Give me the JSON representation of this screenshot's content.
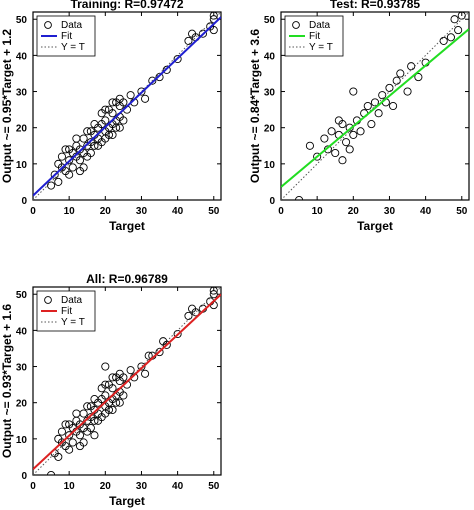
{
  "chart_data": [
    {
      "type": "scatter",
      "title": "Training: R=0.97472",
      "xlabel": "Target",
      "ylabel": "Output ~= 0.95*Target + 1.2",
      "xlim": [
        0,
        52
      ],
      "ylim": [
        0,
        52
      ],
      "xticks": [
        "0",
        "10",
        "20",
        "30",
        "40",
        "50"
      ],
      "yticks": [
        "0",
        "10",
        "20",
        "30",
        "40",
        "50"
      ],
      "grid": false,
      "legend_position": "top-left",
      "legend": [
        "Data",
        "Fit",
        "Y = T"
      ],
      "fit": {
        "slope": 0.95,
        "intercept": 1.2,
        "color": "#1f1fd0"
      },
      "series": [
        {
          "name": "Data",
          "values": [
            [
              5,
              4
            ],
            [
              6,
              7
            ],
            [
              7,
              5
            ],
            [
              8,
              9
            ],
            [
              8,
              12
            ],
            [
              9,
              8
            ],
            [
              10,
              11
            ],
            [
              10,
              14
            ],
            [
              11,
              9
            ],
            [
              11,
              13
            ],
            [
              12,
              12
            ],
            [
              12,
              15
            ],
            [
              13,
              11
            ],
            [
              13,
              14
            ],
            [
              14,
              13
            ],
            [
              14,
              17
            ],
            [
              15,
              15
            ],
            [
              15,
              12
            ],
            [
              16,
              16
            ],
            [
              16,
              19
            ],
            [
              17,
              15
            ],
            [
              17,
              18
            ],
            [
              18,
              17
            ],
            [
              18,
              20
            ],
            [
              19,
              16
            ],
            [
              19,
              21
            ],
            [
              20,
              19
            ],
            [
              20,
              22
            ],
            [
              21,
              20
            ],
            [
              21,
              18
            ],
            [
              22,
              21
            ],
            [
              22,
              24
            ],
            [
              23,
              22
            ],
            [
              23,
              20
            ],
            [
              24,
              23
            ],
            [
              24,
              26
            ],
            [
              25,
              22
            ],
            [
              25,
              27
            ],
            [
              14,
              9
            ],
            [
              16,
              13
            ],
            [
              18,
              15
            ],
            [
              20,
              17
            ],
            [
              20,
              25
            ],
            [
              22,
              27
            ],
            [
              19,
              24
            ],
            [
              17,
              21
            ],
            [
              24,
              20
            ],
            [
              15,
              19
            ],
            [
              21,
              25
            ],
            [
              23,
              27
            ],
            [
              26,
              25
            ],
            [
              27,
              29
            ],
            [
              28,
              27
            ],
            [
              30,
              30
            ],
            [
              31,
              28
            ],
            [
              33,
              33
            ],
            [
              35,
              34
            ],
            [
              37,
              36
            ],
            [
              40,
              39
            ],
            [
              43,
              44
            ],
            [
              45,
              45
            ],
            [
              47,
              46
            ],
            [
              49,
              48
            ],
            [
              50,
              50
            ],
            [
              50,
              51
            ],
            [
              50,
              47
            ],
            [
              44,
              46
            ],
            [
              9,
              14
            ],
            [
              10,
              7
            ],
            [
              12,
              17
            ],
            [
              13,
              8
            ],
            [
              7,
              10
            ],
            [
              24,
              28
            ],
            [
              22,
              18
            ]
          ]
        }
      ]
    },
    {
      "type": "scatter",
      "title": "Test: R=0.93785",
      "xlabel": "Target",
      "ylabel": "Output ~= 0.84*Target + 3.6",
      "xlim": [
        0,
        52
      ],
      "ylim": [
        0,
        52
      ],
      "xticks": [
        "0",
        "10",
        "20",
        "30",
        "40",
        "50"
      ],
      "yticks": [
        "0",
        "10",
        "20",
        "30",
        "40",
        "50"
      ],
      "grid": false,
      "legend_position": "top-left",
      "legend": [
        "Data",
        "Fit",
        "Y = T"
      ],
      "fit": {
        "slope": 0.84,
        "intercept": 3.6,
        "color": "#22dd22"
      },
      "series": [
        {
          "name": "Data",
          "values": [
            [
              5,
              0
            ],
            [
              8,
              15
            ],
            [
              10,
              12
            ],
            [
              12,
              17
            ],
            [
              13,
              14
            ],
            [
              14,
              19
            ],
            [
              15,
              13
            ],
            [
              16,
              18
            ],
            [
              17,
              11
            ],
            [
              17,
              21
            ],
            [
              18,
              16
            ],
            [
              19,
              20
            ],
            [
              20,
              30
            ],
            [
              20,
              18
            ],
            [
              21,
              22
            ],
            [
              22,
              19
            ],
            [
              23,
              24
            ],
            [
              24,
              26
            ],
            [
              25,
              21
            ],
            [
              26,
              27
            ],
            [
              27,
              24
            ],
            [
              28,
              29
            ],
            [
              29,
              27
            ],
            [
              30,
              31
            ],
            [
              31,
              26
            ],
            [
              32,
              33
            ],
            [
              33,
              35
            ],
            [
              35,
              30
            ],
            [
              36,
              37
            ],
            [
              38,
              34
            ],
            [
              40,
              38
            ],
            [
              45,
              44
            ],
            [
              47,
              45
            ],
            [
              48,
              50
            ],
            [
              49,
              47
            ],
            [
              50,
              51
            ],
            [
              16,
              22
            ],
            [
              19,
              14
            ]
          ]
        }
      ]
    },
    {
      "type": "scatter",
      "title": "All: R=0.96789",
      "xlabel": "Target",
      "ylabel": "Output ~= 0.93*Target + 1.6",
      "xlim": [
        0,
        52
      ],
      "ylim": [
        0,
        52
      ],
      "xticks": [
        "0",
        "10",
        "20",
        "30",
        "40",
        "50"
      ],
      "yticks": [
        "0",
        "10",
        "20",
        "30",
        "40",
        "50"
      ],
      "grid": false,
      "legend_position": "top-left",
      "legend": [
        "Data",
        "Fit",
        "Y = T"
      ],
      "fit": {
        "slope": 0.93,
        "intercept": 1.6,
        "color": "#dd2222"
      },
      "series": [
        {
          "name": "Data",
          "values": [
            [
              5,
              0
            ],
            [
              6,
              6
            ],
            [
              7,
              5
            ],
            [
              8,
              9
            ],
            [
              8,
              12
            ],
            [
              9,
              8
            ],
            [
              10,
              11
            ],
            [
              10,
              14
            ],
            [
              11,
              9
            ],
            [
              11,
              13
            ],
            [
              12,
              12
            ],
            [
              12,
              15
            ],
            [
              13,
              11
            ],
            [
              13,
              14
            ],
            [
              14,
              13
            ],
            [
              14,
              17
            ],
            [
              15,
              15
            ],
            [
              15,
              12
            ],
            [
              16,
              16
            ],
            [
              16,
              19
            ],
            [
              17,
              15
            ],
            [
              17,
              18
            ],
            [
              18,
              17
            ],
            [
              18,
              20
            ],
            [
              19,
              16
            ],
            [
              19,
              21
            ],
            [
              20,
              19
            ],
            [
              20,
              22
            ],
            [
              21,
              20
            ],
            [
              21,
              18
            ],
            [
              22,
              21
            ],
            [
              22,
              24
            ],
            [
              23,
              22
            ],
            [
              23,
              20
            ],
            [
              24,
              23
            ],
            [
              24,
              26
            ],
            [
              25,
              22
            ],
            [
              25,
              27
            ],
            [
              14,
              9
            ],
            [
              16,
              13
            ],
            [
              18,
              15
            ],
            [
              20,
              17
            ],
            [
              20,
              25
            ],
            [
              22,
              27
            ],
            [
              19,
              24
            ],
            [
              17,
              21
            ],
            [
              24,
              20
            ],
            [
              15,
              19
            ],
            [
              21,
              25
            ],
            [
              23,
              27
            ],
            [
              26,
              25
            ],
            [
              27,
              29
            ],
            [
              28,
              27
            ],
            [
              30,
              30
            ],
            [
              31,
              28
            ],
            [
              33,
              33
            ],
            [
              35,
              34
            ],
            [
              37,
              36
            ],
            [
              40,
              39
            ],
            [
              43,
              44
            ],
            [
              45,
              45
            ],
            [
              47,
              46
            ],
            [
              49,
              48
            ],
            [
              50,
              50
            ],
            [
              50,
              51
            ],
            [
              50,
              47
            ],
            [
              44,
              46
            ],
            [
              9,
              14
            ],
            [
              10,
              7
            ],
            [
              12,
              17
            ],
            [
              13,
              8
            ],
            [
              7,
              10
            ],
            [
              24,
              28
            ],
            [
              22,
              18
            ],
            [
              20,
              30
            ],
            [
              32,
              33
            ],
            [
              36,
              37
            ],
            [
              17,
              11
            ]
          ]
        }
      ]
    }
  ]
}
